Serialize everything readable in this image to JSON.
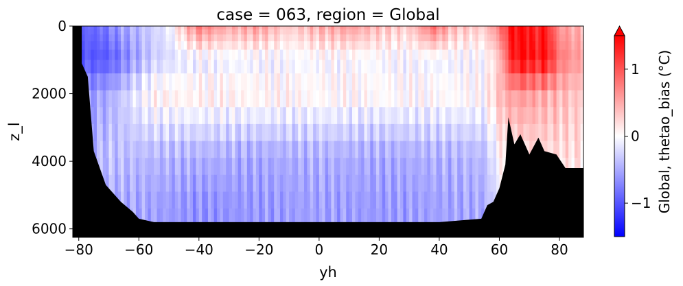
{
  "chart_data": {
    "type": "heatmap",
    "title": "case = 063, region = Global",
    "xlabel": "yh",
    "ylabel": "z_l",
    "xlim": [
      -82,
      88
    ],
    "ylim": [
      6250,
      0
    ],
    "xticks": [
      -80,
      -60,
      -40,
      -20,
      0,
      20,
      40,
      60,
      80
    ],
    "yticks": [
      0,
      2000,
      4000,
      6000
    ],
    "colorbar": {
      "label": "Global, thetao_bias (°C)",
      "range": [
        -1.5,
        1.5
      ],
      "ticks": [
        -1,
        0,
        1
      ],
      "tick_labels": [
        "−1",
        "0",
        "1"
      ],
      "extend": "max",
      "colormap": "bwr"
    },
    "depth_levels": [
      0,
      100,
      250,
      450,
      700,
      1000,
      1400,
      1900,
      2400,
      2900,
      3400,
      3900,
      4400,
      4900,
      5400,
      5800,
      6250
    ],
    "land_color": "#000000",
    "bathymetry": [
      [
        -82,
        6250
      ],
      [
        -79,
        1100
      ],
      [
        -77,
        1500
      ],
      [
        -75,
        3700
      ],
      [
        -73,
        4200
      ],
      [
        -71,
        4700
      ],
      [
        -69,
        4900
      ],
      [
        -66,
        5200
      ],
      [
        -62,
        5500
      ],
      [
        -60,
        5700
      ],
      [
        -55,
        5800
      ],
      [
        -50,
        5800
      ],
      [
        -40,
        5800
      ],
      [
        0,
        5800
      ],
      [
        40,
        5800
      ],
      [
        54,
        5700
      ],
      [
        56,
        5300
      ],
      [
        58,
        5200
      ],
      [
        60,
        4800
      ],
      [
        62,
        4100
      ],
      [
        63,
        2700
      ],
      [
        65,
        3500
      ],
      [
        67,
        3200
      ],
      [
        70,
        3800
      ],
      [
        73,
        3300
      ],
      [
        75,
        3700
      ],
      [
        79,
        3800
      ],
      [
        82,
        4200
      ],
      [
        88,
        4200
      ]
    ],
    "bias_profile": {
      "shallow": [
        [
          -78,
          -0.9
        ],
        [
          -72,
          -0.8
        ],
        [
          -65,
          -0.5
        ],
        [
          -60,
          -0.4
        ],
        [
          -50,
          -0.1
        ],
        [
          -45,
          0.4
        ],
        [
          -40,
          0.8
        ],
        [
          -30,
          0.5
        ],
        [
          -20,
          0.6
        ],
        [
          -10,
          0.3
        ],
        [
          0,
          0.5
        ],
        [
          10,
          0.6
        ],
        [
          20,
          0.4
        ],
        [
          30,
          0.3
        ],
        [
          38,
          0.9
        ],
        [
          45,
          0.4
        ],
        [
          55,
          0.3
        ],
        [
          60,
          0.8
        ],
        [
          64,
          1.4
        ],
        [
          68,
          1.5
        ],
        [
          72,
          1.2
        ],
        [
          75,
          1.4
        ],
        [
          80,
          0.6
        ],
        [
          88,
          0.4
        ]
      ],
      "intermediate": [
        [
          -78,
          -1.0
        ],
        [
          -72,
          -1.0
        ],
        [
          -68,
          -0.9
        ],
        [
          -62,
          -0.6
        ],
        [
          -55,
          -0.3
        ],
        [
          -45,
          -0.15
        ],
        [
          -30,
          -0.1
        ],
        [
          -20,
          -0.1
        ],
        [
          0,
          -0.05
        ],
        [
          20,
          -0.05
        ],
        [
          40,
          -0.1
        ],
        [
          55,
          -0.05
        ],
        [
          60,
          0.3
        ],
        [
          64,
          1.3
        ],
        [
          68,
          1.5
        ],
        [
          72,
          1.3
        ],
        [
          75,
          1.5
        ],
        [
          80,
          0.8
        ],
        [
          88,
          0.5
        ]
      ],
      "mid_depth": [
        [
          -78,
          -0.6
        ],
        [
          -70,
          -0.5
        ],
        [
          -62,
          -0.15
        ],
        [
          -55,
          0.1
        ],
        [
          -40,
          0.12
        ],
        [
          -20,
          0.1
        ],
        [
          0,
          0.07
        ],
        [
          20,
          0.06
        ],
        [
          40,
          0.05
        ],
        [
          55,
          0.05
        ],
        [
          62,
          0.5
        ],
        [
          68,
          0.6
        ],
        [
          75,
          0.5
        ],
        [
          88,
          0.3
        ]
      ],
      "deep": [
        [
          -78,
          -0.5
        ],
        [
          -70,
          -0.35
        ],
        [
          -60,
          -0.4
        ],
        [
          -40,
          -0.45
        ],
        [
          -20,
          -0.5
        ],
        [
          0,
          -0.45
        ],
        [
          20,
          -0.5
        ],
        [
          40,
          -0.45
        ],
        [
          55,
          -0.4
        ],
        [
          62,
          0.2
        ],
        [
          88,
          0.2
        ]
      ],
      "abyssal": [
        [
          -78,
          -0.5
        ],
        [
          -65,
          -0.5
        ],
        [
          -55,
          -0.55
        ],
        [
          -40,
          -0.65
        ],
        [
          -20,
          -0.6
        ],
        [
          0,
          -0.55
        ],
        [
          20,
          -0.6
        ],
        [
          40,
          -0.55
        ],
        [
          55,
          -0.5
        ],
        [
          62,
          0.0
        ],
        [
          88,
          0.0
        ]
      ]
    }
  }
}
